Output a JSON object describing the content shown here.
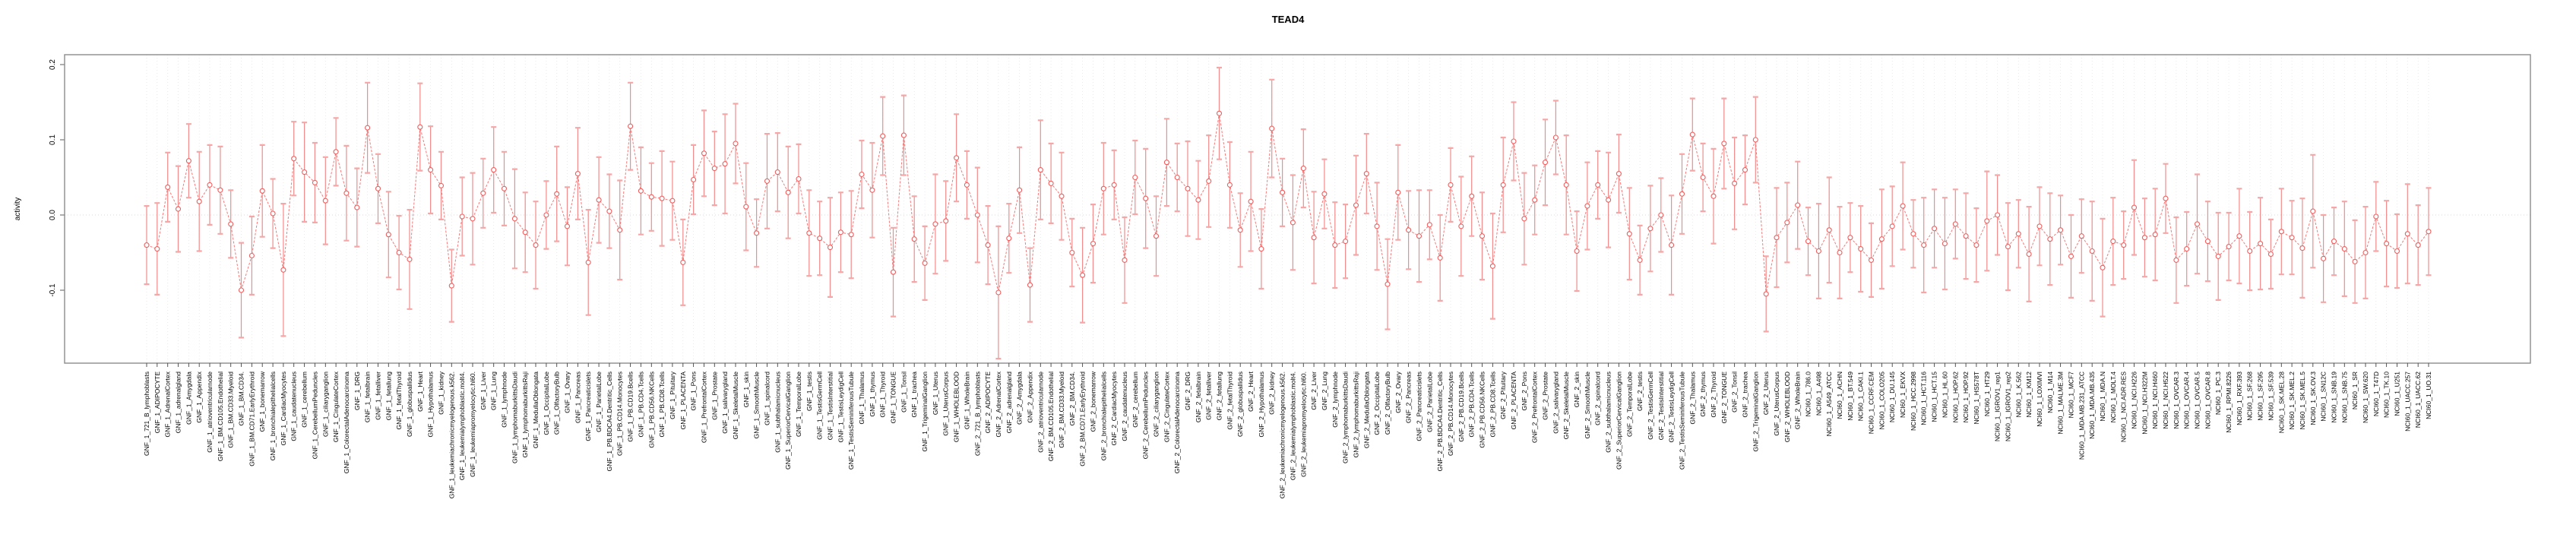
{
  "chart_data": {
    "type": "line",
    "error_bars": true,
    "title": "TEAD4",
    "ylabel": "activity",
    "xlabel": "",
    "ylim": [
      -0.197,
      0.213
    ],
    "yticks": [
      -0.1,
      0.0,
      0.1,
      0.2
    ],
    "ytick_labels": [
      "-0.1",
      "0.0",
      "0.1",
      "0.2"
    ],
    "grid": "dotted-vertical-per-sample-plus-zero-line",
    "legend": "none",
    "colors": {
      "point": "#ef5e5e",
      "line": "#f26a6a",
      "error_bar": "#f28b8b",
      "error_cap": "#f5a6a6",
      "grid": "#e4e4e4",
      "zero_line": "#d9d9d9",
      "box": "#8b8b8b",
      "text": "#000000",
      "background": "#ffffff"
    },
    "categories": [
      "GNF_1_721_B_lymphoblasts",
      "GNF_1_ADIPOCYTE",
      "GNF_1_AdrenalCortex",
      "GNF_1_adrenalgland",
      "GNF_1_Amygdala",
      "GNF_1_Appendix",
      "GNF_1_atrioventricularnode",
      "GNF_1_BM.CD105.Endothelial",
      "GNF_1_BM.CD33.Myeloid",
      "GNF_1_BM.CD34.",
      "GNF_1_BM.CD71.EarlyErythroid",
      "GNF_1_bonemarrow",
      "GNF_1_bronchialepithelialcells",
      "GNF_1_CardiacMyocytes",
      "GNF_1_caudatenucleus",
      "GNF_1_cerebellum",
      "GNF_1_CerebellumPeduncles",
      "GNF_1_ciliaryganglion",
      "GNF_1_CingulateCortex",
      "GNF_1_ColorectalAdenocarcinoma",
      "GNF_1_DRG",
      "GNF_1_fetalbrain",
      "GNF_1_fetalliver",
      "GNF_1_fetallung",
      "GNF_1_fetalThyroid",
      "GNF_1_globuspallidus",
      "GNF_1_Heart",
      "GNF_1_Hypothalamus",
      "GNF_1_kidney",
      "GNF_1_leukemiachronicmyelogenous.k562.",
      "GNF_1_leukemialymphoblastic.molt4.",
      "GNF_1_leukemiapromyelocytic.hl60.",
      "GNF_1_Liver",
      "GNF_1_Lung",
      "GNF_1_lymphnode",
      "GNF_1_lymphomaburkittsDaudi",
      "GNF_1_lymphomaburkittsRaji",
      "GNF_1_MedullaOblongata",
      "GNF_1_OccipitalLobe",
      "GNF_1_OlfactoryBulb",
      "GNF_1_Ovary",
      "GNF_1_Pancreas",
      "GNF_1_Pancreaticislets",
      "GNF_1_ParietalLobe",
      "GNF_1_PB.BDCA4.Dentritic_Cells",
      "GNF_1_PB.CD14.Monocytes",
      "GNF_1_PB.CD19.Bcells",
      "GNF_1_PB.CD4.Tcells",
      "GNF_1_PB.CD56.NKCells",
      "GNF_1_PB.CD8.Tcells",
      "GNF_1_Pituitary",
      "GNF_1_PLACENTA",
      "GNF_1_Pons",
      "GNF_1_PrefrontalCortex",
      "GNF_1_Prostate",
      "GNF_1_salivarygland",
      "GNF_1_SkeletalMuscle",
      "GNF_1_skin",
      "GNF_1_SmoothMuscle",
      "GNF_1_spinalcord",
      "GNF_1_subthalamicnucleus",
      "GNF_1_SuperiorCervicalGanglion",
      "GNF_1_TemporalLobe",
      "GNF_1_testis",
      "GNF_1_TestisGermCell",
      "GNF_1_TestisInterstitial",
      "GNF_1_TestisLeydigCell",
      "GNF_1_TestisSeminiferousTubule",
      "GNF_1_Thalamus",
      "GNF_1_thymus",
      "GNF_1_Thyroid",
      "GNF_1_TONGUE",
      "GNF_1_Tonsil",
      "GNF_1_trachea",
      "GNF_1_TrigeminalGanglion",
      "GNF_1_Uterus",
      "GNF_1_UterusCorpus",
      "GNF_1_WHOLEBLOOD",
      "GNF_1_WholeBrain",
      "GNF_2_721_B_lymphoblasts",
      "GNF_2_ADIPOCYTE",
      "GNF_2_AdrenalCortex",
      "GNF_2_adrenalgland",
      "GNF_2_Amygdala",
      "GNF_2_Appendix",
      "GNF_2_atrioventricularnode",
      "GNF_2_BM.CD105.Endothelial",
      "GNF_2_BM.CD33.Myeloid",
      "GNF_2_BM.CD34.",
      "GNF_2_BM.CD71.EarlyErythroid",
      "GNF_2_bonemarrow",
      "GNF_2_bronchialepithelialcells",
      "GNF_2_CardiacMyocytes",
      "GNF_2_caudatenucleus",
      "GNF_2_cerebellum",
      "GNF_2_CerebellumPeduncles",
      "GNF_2_ciliaryganglion",
      "GNF_2_CingulateCortex",
      "GNF_2_ColorectalAdenocarcinoma",
      "GNF_2_DRG",
      "GNF_2_fetalbrain",
      "GNF_2_fetalliver",
      "GNF_2_fetallung",
      "GNF_2_fetalThyroid",
      "GNF_2_globuspallidus",
      "GNF_2_Heart",
      "GNF_2_Hypothalamus",
      "GNF_2_kidney",
      "GNF_2_leukemiachronicmyelogenous.k562.",
      "GNF_2_leukemialymphoblastic.molt4.",
      "GNF_2_leukemiapromyelocytic.hl60.",
      "GNF_2_Liver",
      "GNF_2_Lung",
      "GNF_2_lymphnode",
      "GNF_2_lymphomaburkittsDaudi",
      "GNF_2_lymphomaburkittsRaji",
      "GNF_2_MedullaOblongata",
      "GNF_2_OccipitalLobe",
      "GNF_2_OlfactoryBulb",
      "GNF_2_Ovary",
      "GNF_2_Pancreas",
      "GNF_2_Pancreaticislets",
      "GNF_2_ParietalLobe",
      "GNF_2_PB.BDCA4.Dentritic_Cells",
      "GNF_2_PB.CD14.Monocytes",
      "GNF_2_PB.CD19.Bcells",
      "GNF_2_PB.CD4.Tcells",
      "GNF_2_PB.CD56.NKCells",
      "GNF_2_PB.CD8.Tcells",
      "GNF_2_Pituitary",
      "GNF_2_PLACENTA",
      "GNF_2_Pons",
      "GNF_2_PrefrontalCortex",
      "GNF_2_Prostate",
      "GNF_2_salivarygland",
      "GNF_2_SkeletalMuscle",
      "GNF_2_skin",
      "GNF_2_SmoothMuscle",
      "GNF_2_spinalcord",
      "GNF_2_subthalamicnucleus",
      "GNF_2_SuperiorCervicalGanglion",
      "GNF_2_TemporalLobe",
      "GNF_2_testis",
      "GNF_2_TestisGermCell",
      "GNF_2_TestisInterstitial",
      "GNF_2_TestisLeydigCell",
      "GNF_2_TestisSeminiferousTubule",
      "GNF_2_Thalamus",
      "GNF_2_thymus",
      "GNF_2_Thyroid",
      "GNF_2_TONGUE",
      "GNF_2_Tonsil",
      "GNF_2_trachea",
      "GNF_2_TrigeminalGanglion",
      "GNF_2_Uterus",
      "GNF_2_UterusCorpus",
      "GNF_2_WHOLEBLOOD",
      "GNF_2_WholeBrain",
      "NCI60_1_786.0",
      "NCI60_1_A498",
      "NCI60_1_A549_ATCC",
      "NCI60_1_ACHN",
      "NCI60_1_BT.549",
      "NCI60_1_CAKI.1",
      "NCI60_1_CCRF.CEM",
      "NCI60_1_COLO205",
      "NCI60_1_DU.145",
      "NCI60_1_EKVX",
      "NCI60_1_HCC.2998",
      "NCI60_1_HCT.116",
      "NCI60_1_HCT.15",
      "NCI60_1_HL.60",
      "NCI60_1_HOP.62",
      "NCI60_1_HOP.92",
      "NCI60_1_HS578T",
      "NCI60_1_HT29",
      "NCI60_1_IGROV1_rep1",
      "NCI60_1_IGROV1_rep2",
      "NCI60_1_K.562",
      "NCI60_1_KM12",
      "NCI60_1_LOXIMVI",
      "NCI60_1_M14",
      "NCI60_1_MALME.3M",
      "NCI60_1_MCF7",
      "NCI60_1_MDA.MB.231_ATCC",
      "NCI60_1_MDA.MB.435",
      "NCI60_1_MDA.N",
      "NCI60_1_MOLT.4",
      "NCI60_1_NCI.ADR.RES",
      "NCI60_1_NCI.H226",
      "NCI60_1_NCI.H322M",
      "NCI60_1_NCI.H460",
      "NCI60_1_NCI.H522",
      "NCI60_1_OVCAR.3",
      "NCI60_1_OVCAR.4",
      "NCI60_1_OVCAR.5",
      "NCI60_1_OVCAR.8",
      "NCI60_1_PC.3",
      "NCI60_1_RPMI.8226",
      "NCI60_1_RXF.393",
      "NCI60_1_SF.268",
      "NCI60_1_SF.295",
      "NCI60_1_SF.539",
      "NCI60_1_SK.MEL.28",
      "NCI60_1_SK.MEL.2",
      "NCI60_1_SK.MEL.5",
      "NCI60_1_SK.OV.3",
      "NCI60_1_SN12C",
      "NCI60_1_SNB.19",
      "NCI60_1_SNB.75",
      "NCI60_1_SR",
      "NCI60_1_SW.620",
      "NCI60_1_T47D",
      "NCI60_1_TK.10",
      "NCI60_1_U251",
      "NCI60_1_UACC.257",
      "NCI60_1_UACC.62",
      "NCI60_1_UO.31"
    ],
    "values": [
      -0.04,
      -0.045,
      0.037,
      0.008,
      0.072,
      0.018,
      0.04,
      0.033,
      -0.012,
      -0.1,
      -0.054,
      0.032,
      0.002,
      -0.073,
      0.075,
      0.057,
      0.043,
      0.019,
      0.084,
      0.029,
      0.01,
      0.116,
      0.035,
      -0.026,
      -0.05,
      -0.059,
      0.117,
      0.06,
      0.039,
      -0.094,
      -0.002,
      -0.005,
      0.029,
      0.06,
      0.035,
      -0.005,
      -0.023,
      -0.04,
      0.0,
      0.028,
      -0.015,
      0.055,
      -0.063,
      0.02,
      0.005,
      -0.02,
      0.118,
      0.032,
      0.024,
      0.022,
      0.019,
      -0.063,
      0.047,
      0.082,
      0.062,
      0.068,
      0.095,
      0.011,
      -0.024,
      0.045,
      0.057,
      0.03,
      0.048,
      -0.024,
      -0.031,
      -0.043,
      -0.023,
      -0.026,
      0.054,
      0.033,
      0.105,
      -0.076,
      0.106,
      -0.032,
      -0.064,
      -0.012,
      -0.008,
      0.076,
      0.04,
      0.0,
      -0.04,
      -0.103,
      -0.031,
      0.033,
      -0.093,
      0.06,
      0.042,
      0.025,
      -0.05,
      -0.08,
      -0.038,
      0.035,
      0.04,
      -0.06,
      0.05,
      0.022,
      -0.028,
      0.07,
      0.05,
      0.035,
      0.02,
      0.045,
      0.135,
      0.04,
      -0.02,
      0.018,
      -0.045,
      0.115,
      0.03,
      -0.01,
      0.062,
      -0.03,
      0.028,
      -0.04,
      -0.035,
      0.013,
      0.055,
      -0.015,
      -0.092,
      0.03,
      -0.02,
      -0.028,
      -0.013,
      -0.057,
      0.04,
      -0.015,
      0.025,
      -0.028,
      -0.068,
      0.04,
      0.098,
      -0.005,
      0.02,
      0.07,
      0.103,
      0.04,
      -0.048,
      0.012,
      0.04,
      0.02,
      0.055,
      -0.025,
      -0.06,
      -0.018,
      0.0,
      -0.04,
      0.028,
      0.107,
      0.05,
      0.025,
      0.095,
      0.042,
      0.06,
      0.1,
      -0.105,
      -0.03,
      -0.01,
      0.013,
      -0.035,
      -0.048,
      -0.02,
      -0.05,
      -0.03,
      -0.045,
      -0.06,
      -0.032,
      -0.015,
      0.012,
      -0.025,
      -0.04,
      -0.018,
      -0.038,
      -0.012,
      -0.028,
      -0.04,
      -0.008,
      0.0,
      -0.042,
      -0.025,
      -0.052,
      -0.015,
      -0.032,
      -0.02,
      -0.055,
      -0.028,
      -0.048,
      -0.07,
      -0.035,
      -0.04,
      0.01,
      -0.03,
      -0.026,
      0.022,
      -0.06,
      -0.045,
      -0.012,
      -0.035,
      -0.055,
      -0.042,
      -0.028,
      -0.048,
      -0.038,
      -0.052,
      -0.022,
      -0.03,
      -0.044,
      0.005,
      -0.058,
      -0.035,
      -0.045,
      -0.062,
      -0.05,
      -0.002,
      -0.038,
      -0.048,
      -0.025,
      -0.04,
      -0.022
    ],
    "errors": [
      0.052,
      0.061,
      0.046,
      0.057,
      0.049,
      0.066,
      0.053,
      0.058,
      0.045,
      0.063,
      0.052,
      0.061,
      0.046,
      0.088,
      0.049,
      0.066,
      0.053,
      0.058,
      0.045,
      0.063,
      0.052,
      0.06,
      0.046,
      0.057,
      0.049,
      0.066,
      0.058,
      0.058,
      0.045,
      0.048,
      0.052,
      0.061,
      0.046,
      0.057,
      0.049,
      0.066,
      0.053,
      0.058,
      0.045,
      0.063,
      0.052,
      0.061,
      0.07,
      0.057,
      0.049,
      0.066,
      0.058,
      0.058,
      0.045,
      0.063,
      0.052,
      0.057,
      0.046,
      0.057,
      0.049,
      0.066,
      0.053,
      0.058,
      0.045,
      0.063,
      0.052,
      0.061,
      0.046,
      0.057,
      0.049,
      0.066,
      0.053,
      0.058,
      0.045,
      0.063,
      0.052,
      0.059,
      0.053,
      0.057,
      0.049,
      0.066,
      0.053,
      0.058,
      0.045,
      0.063,
      0.052,
      0.088,
      0.046,
      0.057,
      0.049,
      0.066,
      0.053,
      0.058,
      0.045,
      0.063,
      0.052,
      0.061,
      0.046,
      0.057,
      0.049,
      0.066,
      0.053,
      0.058,
      0.045,
      0.063,
      0.052,
      0.061,
      0.061,
      0.057,
      0.049,
      0.066,
      0.053,
      0.065,
      0.045,
      0.063,
      0.052,
      0.061,
      0.046,
      0.057,
      0.049,
      0.066,
      0.053,
      0.058,
      0.06,
      0.063,
      0.052,
      0.061,
      0.046,
      0.057,
      0.049,
      0.066,
      0.053,
      0.058,
      0.07,
      0.063,
      0.052,
      0.061,
      0.046,
      0.057,
      0.049,
      0.066,
      0.053,
      0.058,
      0.045,
      0.063,
      0.052,
      0.061,
      0.046,
      0.057,
      0.049,
      0.066,
      0.053,
      0.048,
      0.045,
      0.063,
      0.06,
      0.061,
      0.046,
      0.057,
      0.05,
      0.066,
      0.053,
      0.058,
      0.045,
      0.063,
      0.07,
      0.061,
      0.046,
      0.057,
      0.049,
      0.066,
      0.053,
      0.058,
      0.045,
      0.063,
      0.052,
      0.061,
      0.046,
      0.057,
      0.049,
      0.066,
      0.053,
      0.058,
      0.045,
      0.063,
      0.052,
      0.061,
      0.046,
      0.055,
      0.049,
      0.066,
      0.065,
      0.058,
      0.045,
      0.063,
      0.052,
      0.061,
      0.046,
      0.057,
      0.049,
      0.066,
      0.053,
      0.058,
      0.045,
      0.063,
      0.052,
      0.061,
      0.046,
      0.057,
      0.049,
      0.066,
      0.075,
      0.058,
      0.045,
      0.063,
      0.055,
      0.061,
      0.046,
      0.057,
      0.049,
      0.066,
      0.053,
      0.058
    ]
  }
}
